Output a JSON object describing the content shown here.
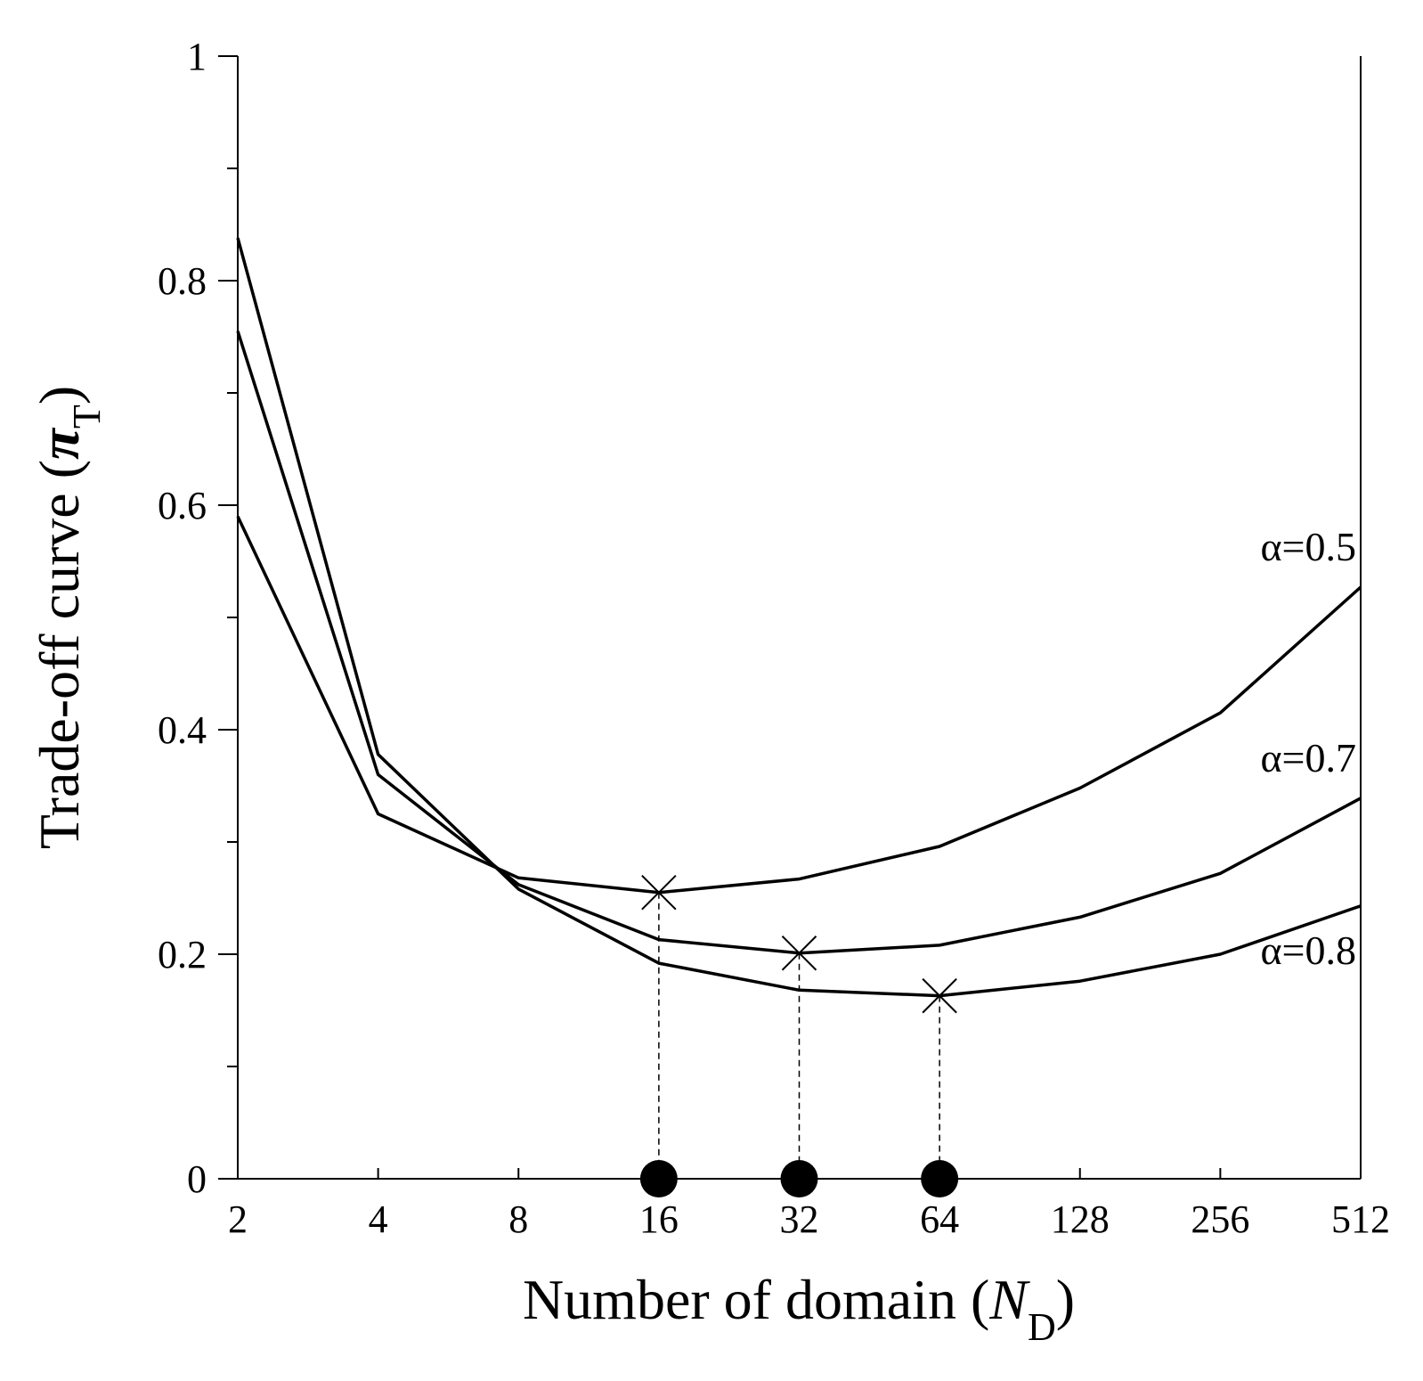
{
  "chart_data": {
    "type": "line",
    "xlabel": {
      "main": "Number of domain (",
      "italic": "N",
      "sub": "D",
      "close": ")"
    },
    "ylabel": {
      "main": "Trade-off curve (",
      "italic": "π",
      "sub": "T",
      "close": ")"
    },
    "x_scale": "log2",
    "x": [
      2,
      4,
      8,
      16,
      32,
      64,
      128,
      256,
      512
    ],
    "x_tick_labels": [
      "2",
      "4",
      "8",
      "16",
      "32",
      "64",
      "128",
      "256",
      "512"
    ],
    "ylim": [
      0,
      1
    ],
    "y_major_ticks": [
      0,
      0.2,
      0.4,
      0.6,
      0.8,
      1
    ],
    "y_tick_labels": [
      "0",
      "0.2",
      "0.4",
      "0.6",
      "0.8",
      "1"
    ],
    "y_minor_ticks": [
      0.1,
      0.3,
      0.5,
      0.7,
      0.9
    ],
    "grid": false,
    "series": [
      {
        "name": "α=0.5",
        "values": [
          0.59,
          0.325,
          0.268,
          0.255,
          0.267,
          0.296,
          0.348,
          0.415,
          0.527
        ]
      },
      {
        "name": "α=0.7",
        "values": [
          0.755,
          0.36,
          0.262,
          0.213,
          0.201,
          0.208,
          0.233,
          0.272,
          0.339
        ]
      },
      {
        "name": "α=0.8",
        "values": [
          0.838,
          0.378,
          0.258,
          0.192,
          0.168,
          0.163,
          0.176,
          0.2,
          0.243
        ]
      }
    ],
    "minima": [
      {
        "x": 16,
        "y": 0.255
      },
      {
        "x": 32,
        "y": 0.201
      },
      {
        "x": 64,
        "y": 0.163
      }
    ],
    "color": "#000000"
  }
}
